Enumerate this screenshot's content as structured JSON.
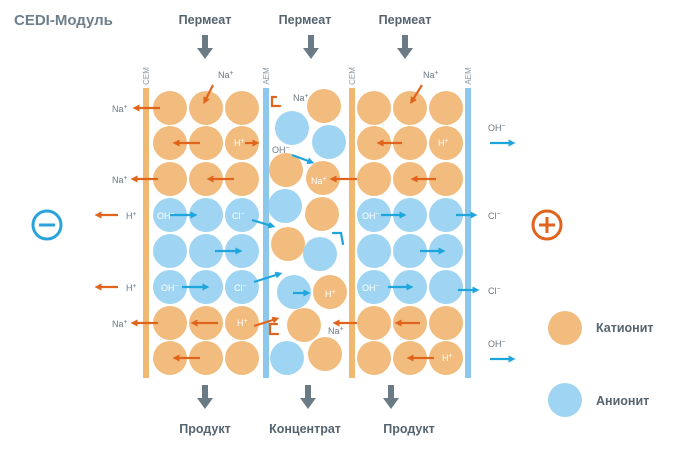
{
  "title": "CEDI-Модуль",
  "top_labels": [
    "Пермеат",
    "Пермеат",
    "Пермеат"
  ],
  "bottom_labels": [
    "Продукт",
    "Концентрат",
    "Продукт"
  ],
  "membranes": [
    "CEM",
    "AEM",
    "CEM",
    "AEM"
  ],
  "ions": {
    "na": "Na",
    "h": "H",
    "oh": "OH",
    "cl": "Cl",
    "plus": "+",
    "minus": "−"
  },
  "electrodes": {
    "cathode": "⊖",
    "anode": "⊕"
  },
  "legend": {
    "cationite": "Катионит",
    "anionite": "Анионит"
  },
  "colors": {
    "cationite": "#f2bc7e",
    "anionite": "#9fd5f2",
    "cem_membrane": "#f0b870",
    "aem_membrane": "#8cc8ec",
    "arrow_orange": "#e0641c",
    "arrow_blue": "#1ea5dc",
    "gray_arrow": "#6b7b86"
  }
}
